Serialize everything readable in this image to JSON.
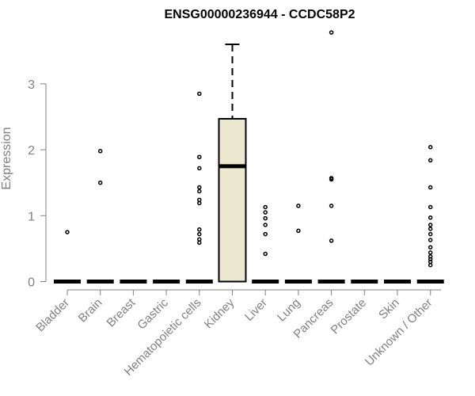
{
  "chart_data": {
    "type": "boxplot",
    "title": "ENSG00000236944 - CCDC58P2",
    "xlabel": "",
    "ylabel": "Expression",
    "ylim": [
      0,
      3.8
    ],
    "yticks": [
      0,
      1,
      2,
      3
    ],
    "grid": false,
    "legend": "none",
    "colors": {
      "axis": "#808080",
      "box_fill": "#ede8d0",
      "box_edge": "#000000",
      "median": "#000000",
      "outlier": "#000000"
    },
    "categories": [
      "Bladder",
      "Brain",
      "Breast",
      "Gastric",
      "Hematopoietic cells",
      "Kidney",
      "Liver",
      "Lung",
      "Pancreas",
      "Prostate",
      "Skin",
      "Unknown / Other"
    ],
    "boxes": [
      {
        "category": "Bladder",
        "min": 0,
        "q1": 0,
        "median": 0,
        "q3": 0,
        "max": 0,
        "outliers": [
          0.75
        ]
      },
      {
        "category": "Brain",
        "min": 0,
        "q1": 0,
        "median": 0,
        "q3": 0,
        "max": 0,
        "outliers": [
          1.5,
          1.98
        ]
      },
      {
        "category": "Breast",
        "min": 0,
        "q1": 0,
        "median": 0,
        "q3": 0,
        "max": 0,
        "outliers": []
      },
      {
        "category": "Gastric",
        "min": 0,
        "q1": 0,
        "median": 0,
        "q3": 0,
        "max": 0,
        "outliers": []
      },
      {
        "category": "Hematopoietic cells",
        "min": 0,
        "q1": 0,
        "median": 0,
        "q3": 0,
        "max": 0,
        "outliers": [
          0.59,
          0.64,
          0.72,
          0.79,
          1.19,
          1.24,
          1.37,
          1.43,
          1.72,
          1.89,
          2.85
        ]
      },
      {
        "category": "Kidney",
        "min": 0,
        "q1": 0,
        "median": 1.75,
        "q3": 2.47,
        "max": 3.6,
        "outliers": []
      },
      {
        "category": "Liver",
        "min": 0,
        "q1": 0,
        "median": 0,
        "q3": 0,
        "max": 0,
        "outliers": [
          0.42,
          0.72,
          0.86,
          0.96,
          1.05,
          1.13
        ]
      },
      {
        "category": "Lung",
        "min": 0,
        "q1": 0,
        "median": 0,
        "q3": 0,
        "max": 0,
        "outliers": [
          0.77,
          1.15
        ]
      },
      {
        "category": "Pancreas",
        "min": 0,
        "q1": 0,
        "median": 0,
        "q3": 0,
        "max": 0,
        "outliers": [
          0.62,
          1.15,
          1.55,
          1.57,
          3.78
        ]
      },
      {
        "category": "Prostate",
        "min": 0,
        "q1": 0,
        "median": 0,
        "q3": 0,
        "max": 0,
        "outliers": []
      },
      {
        "category": "Skin",
        "min": 0,
        "q1": 0,
        "median": 0,
        "q3": 0,
        "max": 0,
        "outliers": []
      },
      {
        "category": "Unknown / Other",
        "min": 0,
        "q1": 0,
        "median": 0,
        "q3": 0,
        "max": 0,
        "outliers": [
          0.25,
          0.3,
          0.34,
          0.38,
          0.44,
          0.52,
          0.63,
          0.72,
          0.8,
          0.86,
          0.97,
          1.13,
          1.43,
          1.84,
          2.04
        ]
      }
    ]
  }
}
